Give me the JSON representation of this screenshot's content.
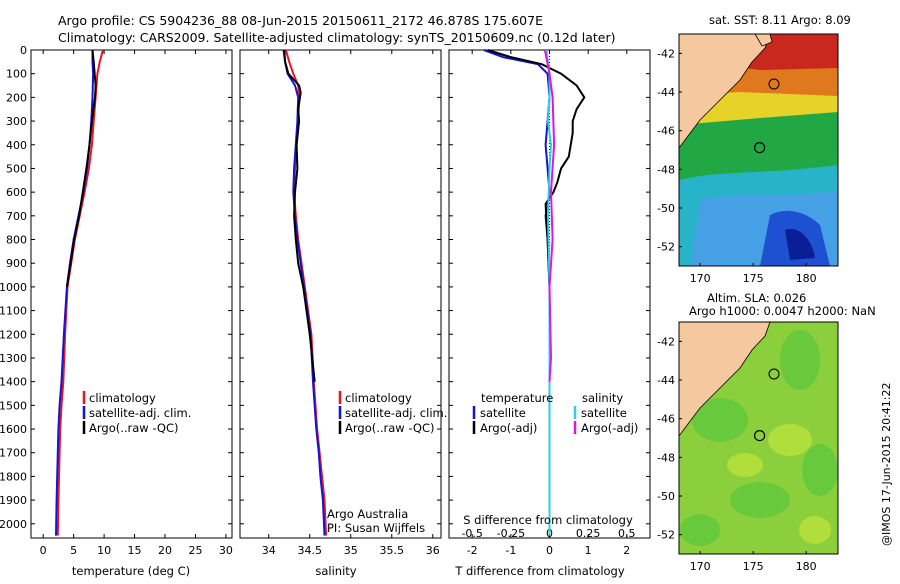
{
  "header": {
    "line1": "Argo profile: CS 5904236_88 08-Jun-2015 20150611_2172 46.878S 175.607E",
    "line2": "Climatology: CARS2009. Satellite-adjusted climatology: synTS_20150609.nc (0.12d later)"
  },
  "colors": {
    "climatology": "#e8141e",
    "satellite": "#1414d2",
    "argo": "#000000",
    "sal_satellite": "#28d2e6",
    "sal_argo": "#e014e6"
  },
  "chart_data": [
    {
      "type": "line",
      "title": "",
      "xlabel": "temperature (deg C)",
      "ylabel": "",
      "xlim": [
        -2,
        31
      ],
      "ylim": [
        2060,
        0
      ],
      "xticks": [
        0,
        5,
        10,
        15,
        20,
        25,
        30
      ],
      "yticks": [
        0,
        100,
        200,
        300,
        400,
        500,
        600,
        700,
        800,
        900,
        1000,
        1100,
        1200,
        1300,
        1400,
        1500,
        1600,
        1700,
        1800,
        1900,
        2000
      ],
      "legend": [
        "climatology",
        "satellite-adj. clim.",
        "Argo(..raw -QC)"
      ],
      "series": [
        {
          "name": "climatology",
          "x": [
            9.8,
            9.3,
            8.9,
            8.6,
            8.3,
            8.0,
            7.5,
            6.8,
            6.0,
            5.2,
            4.6,
            4.0,
            3.6,
            3.3,
            3.0,
            2.8,
            2.7,
            2.6,
            2.5,
            2.4
          ],
          "y": [
            0,
            50,
            100,
            200,
            300,
            400,
            500,
            600,
            700,
            800,
            900,
            1000,
            1200,
            1400,
            1500,
            1600,
            1700,
            1800,
            1900,
            2050
          ]
        },
        {
          "name": "satellite-adj. clim.",
          "x": [
            8.1,
            8.1,
            8.2,
            8.1,
            7.9,
            7.6,
            7.2,
            6.6,
            5.8,
            5.0,
            4.4,
            3.9,
            3.4,
            3.0,
            2.7,
            2.5,
            2.4,
            2.3,
            2.2,
            2.1
          ],
          "y": [
            0,
            50,
            100,
            200,
            300,
            400,
            500,
            600,
            700,
            800,
            900,
            1000,
            1200,
            1400,
            1500,
            1600,
            1700,
            1800,
            1900,
            2050
          ]
        },
        {
          "name": "Argo(..raw -QC)",
          "x": [
            8.1,
            8.3,
            8.6,
            8.5,
            8.0,
            7.6,
            7.1,
            6.5,
            5.9,
            5.1,
            4.5,
            3.9
          ],
          "y": [
            0,
            50,
            150,
            200,
            300,
            400,
            500,
            600,
            700,
            800,
            900,
            1000
          ]
        }
      ]
    },
    {
      "type": "line",
      "title": "",
      "xlabel": "salinity",
      "ylabel": "",
      "xlim": [
        33.65,
        36.1
      ],
      "ylim": [
        2060,
        0
      ],
      "xticks": [
        34,
        34.5,
        35,
        35.5,
        36
      ],
      "legend": [
        "climatology",
        "satellite-adj. clim.",
        "Argo(..raw -QC)"
      ],
      "annotations": [
        "Argo Australia",
        "PI: Susan Wijffels"
      ],
      "series": [
        {
          "name": "climatology",
          "x": [
            34.21,
            34.25,
            34.3,
            34.36,
            34.37,
            34.36,
            34.34,
            34.32,
            34.31,
            34.33,
            34.36,
            34.4,
            34.44,
            34.48,
            34.52,
            34.55,
            34.59,
            34.62,
            34.65,
            34.68,
            34.7
          ],
          "y": [
            0,
            50,
            100,
            150,
            200,
            300,
            400,
            500,
            600,
            700,
            800,
            900,
            1000,
            1100,
            1200,
            1400,
            1600,
            1700,
            1800,
            1900,
            2050
          ]
        },
        {
          "name": "satellite-adj. clim.",
          "x": [
            34.18,
            34.2,
            34.23,
            34.32,
            34.36,
            34.35,
            34.33,
            34.31,
            34.3,
            34.32,
            34.35,
            34.39,
            34.43,
            34.47,
            34.51,
            34.54,
            34.58,
            34.61,
            34.63,
            34.66,
            34.68
          ],
          "y": [
            0,
            50,
            100,
            150,
            200,
            300,
            400,
            500,
            600,
            700,
            800,
            900,
            1000,
            1100,
            1200,
            1400,
            1600,
            1700,
            1800,
            1900,
            2050
          ]
        },
        {
          "name": "Argo(..raw -QC)",
          "x": [
            34.19,
            34.2,
            34.24,
            34.37,
            34.39,
            34.36,
            34.37,
            34.34,
            34.35,
            34.32,
            34.31,
            34.33,
            34.36,
            34.42,
            34.46,
            34.5,
            34.53,
            34.56
          ],
          "y": [
            0,
            50,
            100,
            150,
            180,
            250,
            300,
            400,
            500,
            600,
            700,
            800,
            900,
            1000,
            1100,
            1200,
            1300,
            1400
          ]
        }
      ]
    },
    {
      "type": "line",
      "title": "",
      "xlabel": "T difference from climatology",
      "x2label": "S difference from climatology",
      "ylabel": "",
      "xlim": [
        -2.6,
        2.6
      ],
      "x2lim": [
        -0.65,
        0.65
      ],
      "ylim": [
        2060,
        0
      ],
      "xticks": [
        -2,
        -1,
        0,
        1,
        2
      ],
      "x2ticks": [
        -0.5,
        -0.25,
        0,
        0.25,
        0.5
      ],
      "x2ticklabels": [
        "-0.5",
        "-0.25",
        "0",
        "0.25",
        "0.5"
      ],
      "legend_temperature": {
        "title": "temperature",
        "items": [
          "satellite",
          "Argo(-adj)"
        ]
      },
      "legend_salinity": {
        "title": "salinity",
        "items": [
          "satellite",
          "Argo(-adj)"
        ]
      },
      "series": [
        {
          "name": "temperature satellite",
          "x": [
            -1.7,
            -1.2,
            -0.3,
            -0.05,
            0.0,
            -0.05,
            -0.1,
            -0.05,
            0.0,
            -0.1,
            -0.05,
            0.0,
            0.0,
            0.0
          ],
          "y": [
            0,
            30,
            60,
            100,
            200,
            300,
            400,
            500,
            600,
            700,
            800,
            1000,
            1500,
            2050
          ]
        },
        {
          "name": "temperature Argo(-adj)",
          "x": [
            -1.6,
            -1.0,
            -0.2,
            0.3,
            0.7,
            0.9,
            0.7,
            0.6,
            0.6,
            0.5,
            0.3,
            0.2,
            0.1,
            -0.1,
            -0.05,
            0.0
          ],
          "y": [
            0,
            30,
            60,
            100,
            150,
            200,
            250,
            300,
            350,
            450,
            500,
            560,
            600,
            650,
            800,
            1000
          ]
        },
        {
          "name": "salinity satellite",
          "x": [
            -0.02,
            0.0,
            0.0,
            -0.01,
            0.01,
            0.0,
            -0.01,
            0.0,
            0.0
          ],
          "y": [
            0,
            100,
            200,
            300,
            400,
            500,
            700,
            1000,
            2050
          ]
        },
        {
          "name": "salinity Argo(-adj)",
          "x": [
            -0.03,
            0.0,
            0.02,
            0.03,
            0.01,
            0.02,
            0.0,
            0.01,
            0.0
          ],
          "y": [
            0,
            100,
            200,
            400,
            600,
            800,
            1000,
            1300,
            1400
          ]
        }
      ]
    },
    {
      "type": "heatmap",
      "title": "sat. SST: 8.11  Argo: 8.09",
      "xlabel": "",
      "ylabel": "",
      "xlim": [
        168,
        183
      ],
      "ylim": [
        -53,
        -41
      ],
      "xticks": [
        170,
        175,
        180
      ],
      "yticks": [
        -42,
        -44,
        -46,
        -48,
        -50,
        -52
      ],
      "argo_position": {
        "lon": 175.607,
        "lat": -46.878
      }
    },
    {
      "type": "heatmap",
      "title": "Altim. SLA: 0.026",
      "subtitle": "Argo h1000: 0.0047 h2000: NaN",
      "xlabel": "",
      "ylabel": "",
      "xlim": [
        168,
        183
      ],
      "ylim": [
        -53,
        -41
      ],
      "xticks": [
        170,
        175,
        180
      ],
      "yticks": [
        -42,
        -44,
        -46,
        -48,
        -50,
        -52
      ],
      "argo_position": {
        "lon": 175.607,
        "lat": -46.878
      }
    }
  ],
  "footer": {
    "stamp": "@IMOS 17-Jun-2015 20:41:22"
  }
}
